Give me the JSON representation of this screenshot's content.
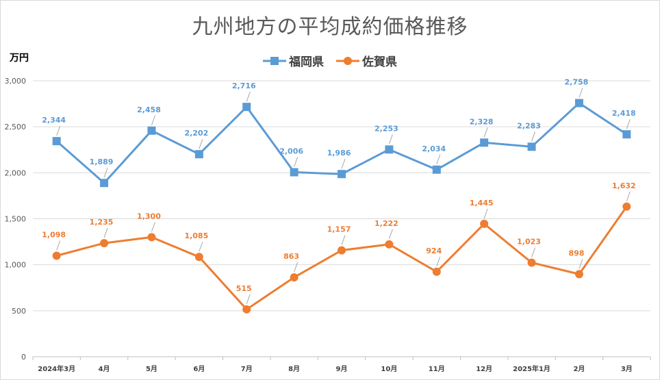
{
  "chart_data": {
    "type": "line",
    "title": "九州地方の平均成約価格推移",
    "ylabel": "万円",
    "xlabel": "",
    "categories": [
      "2024年3月",
      "4月",
      "5月",
      "6月",
      "7月",
      "8月",
      "9月",
      "10月",
      "11月",
      "12月",
      "2025年1月",
      "2月",
      "3月"
    ],
    "ylim": [
      0,
      3000
    ],
    "yticks": [
      0,
      500,
      1000,
      1500,
      2000,
      2500,
      3000
    ],
    "ytick_labels": [
      "0",
      "500",
      "1,000",
      "1,500",
      "2,000",
      "2,500",
      "3,000"
    ],
    "grid": true,
    "legend_position": "top",
    "series": [
      {
        "name": "福岡県",
        "color": "#5b9bd5",
        "marker": "square",
        "values": [
          2344,
          1889,
          2458,
          2202,
          2716,
          2006,
          1986,
          2253,
          2034,
          2328,
          2283,
          2758,
          2418
        ],
        "labels": [
          "2,344",
          "1,889",
          "2,458",
          "2,202",
          "2,716",
          "2,006",
          "1,986",
          "2,253",
          "2,034",
          "2,328",
          "2,283",
          "2,758",
          "2,418"
        ]
      },
      {
        "name": "佐賀県",
        "color": "#ed7d31",
        "marker": "circle",
        "values": [
          1098,
          1235,
          1300,
          1085,
          515,
          863,
          1157,
          1222,
          924,
          1445,
          1023,
          898,
          1632
        ],
        "labels": [
          "1,098",
          "1,235",
          "1,300",
          "1,085",
          "515",
          "863",
          "1,157",
          "1,222",
          "924",
          "1,445",
          "1,023",
          "898",
          "1,632"
        ]
      }
    ]
  }
}
